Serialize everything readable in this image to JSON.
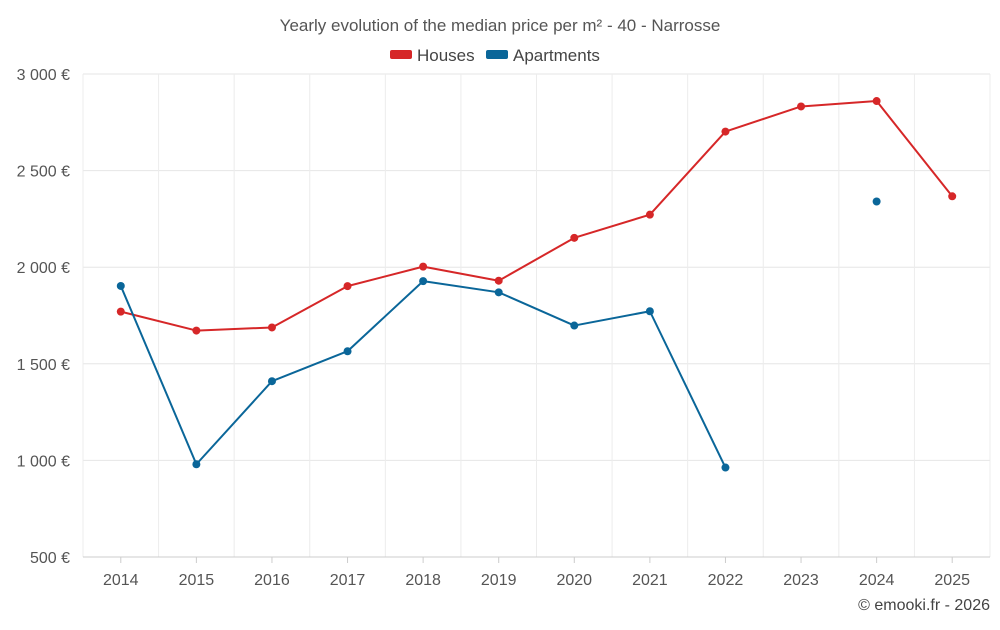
{
  "chart_data": {
    "type": "line",
    "title": "Yearly evolution of the median price per m² - 40 - Narrosse",
    "categories": [
      "2014",
      "2015",
      "2016",
      "2017",
      "2018",
      "2019",
      "2020",
      "2021",
      "2022",
      "2023",
      "2024",
      "2025"
    ],
    "y_ticks": [
      "3 000 €",
      "2 500 €",
      "2 000 €",
      "1 500 €",
      "1 000 €",
      "500 €"
    ],
    "y_tick_values": [
      3000,
      2500,
      2000,
      1500,
      1000,
      500
    ],
    "ylim": [
      500,
      3000
    ],
    "grid": true,
    "legend_position": "top-center",
    "series": [
      {
        "name": "Houses",
        "color": "#d62728",
        "values": [
          1770,
          1672,
          1688,
          1902,
          2003,
          1930,
          2152,
          2272,
          2702,
          2832,
          2860,
          2367
        ]
      },
      {
        "name": "Apartments",
        "color": "#0a6699",
        "values": [
          1903,
          980,
          1410,
          1565,
          1928,
          1870,
          1698,
          1772,
          963,
          null,
          2340,
          null
        ]
      }
    ],
    "credit": "© emooki.fr - 2026"
  }
}
